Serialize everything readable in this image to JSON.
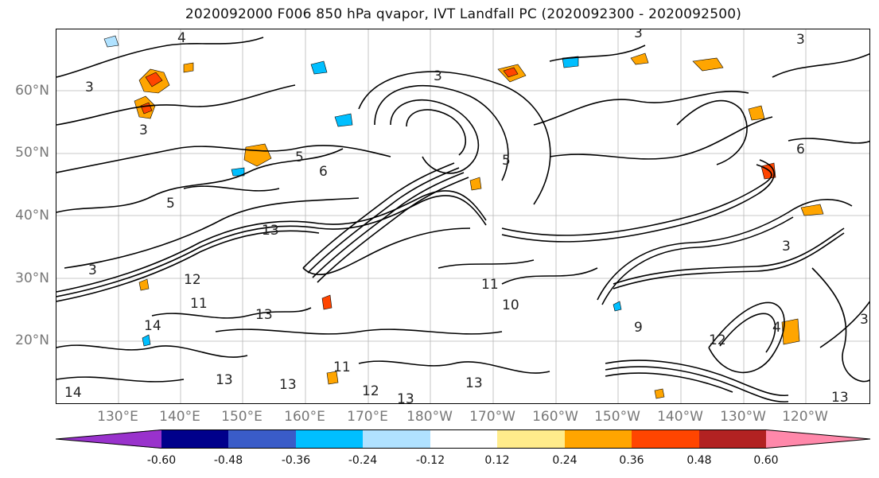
{
  "title": "2020092000 F006 850 hPa qvapor, IVT Landfall PC (2020092300 - 2020092500)",
  "lat_labels": [
    "60°N",
    "50°N",
    "40°N",
    "30°N",
    "20°N"
  ],
  "lon_labels": [
    "130°E",
    "140°E",
    "150°E",
    "160°E",
    "170°E",
    "180°W",
    "170°W",
    "160°W",
    "150°W",
    "140°W",
    "130°W",
    "120°W"
  ],
  "colorbar": {
    "labels": [
      "-0.60",
      "-0.48",
      "-0.36",
      "-0.24",
      "-0.12",
      "0.12",
      "0.24",
      "0.36",
      "0.48",
      "0.60"
    ],
    "colors": [
      "#9932cc",
      "#00008b",
      "#3a5cc8",
      "#00bfff",
      "#b0e2ff",
      "#ffffff",
      "#ffec8b",
      "#ffa500",
      "#ff4500",
      "#b22222",
      "#ff88aa"
    ]
  },
  "contour_labels": [
    "4",
    "3",
    "3",
    "3",
    "3",
    "5",
    "6",
    "5",
    "5",
    "13",
    "3",
    "12",
    "11",
    "13",
    "14",
    "14",
    "13",
    "11",
    "12",
    "13",
    "13",
    "13",
    "10",
    "11",
    "12",
    "9",
    "3",
    "4",
    "3",
    "13",
    "6",
    "3"
  ]
}
